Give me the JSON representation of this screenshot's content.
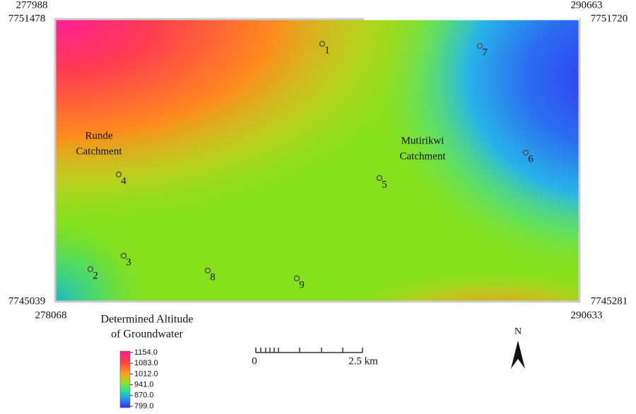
{
  "corners": {
    "top_left": {
      "x": "277988",
      "y": "7751478"
    },
    "top_right": {
      "x": "290663",
      "y": "7751720"
    },
    "bottom_left": {
      "y": "7745039",
      "x": "278068"
    },
    "bottom_right": {
      "y": "7745281",
      "x": "290633"
    }
  },
  "catchments": [
    {
      "lines": [
        "Runde",
        "Catchment"
      ]
    },
    {
      "lines": [
        "Mutirikwi",
        "Catchment"
      ]
    }
  ],
  "points": [
    "1",
    "2",
    "3",
    "4",
    "5",
    "6",
    "7",
    "8",
    "9"
  ],
  "legend": {
    "title": [
      "Determined Altitude",
      "of Groundwater"
    ],
    "labels": [
      "1154.0",
      "1083.0",
      "1012.0",
      "941.0",
      "870.0",
      "799.0"
    ]
  },
  "scale_bar": {
    "start": "0",
    "end": "2.5 km"
  },
  "north_arrow": "N"
}
